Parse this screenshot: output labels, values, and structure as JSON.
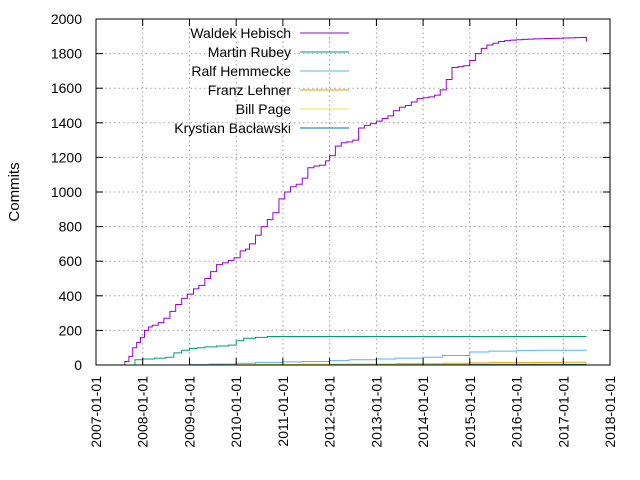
{
  "chart_data": {
    "type": "line",
    "title": "",
    "xlabel": "",
    "ylabel": "Commits",
    "ylim": [
      0,
      2000
    ],
    "xlim": [
      "2007-01-01",
      "2018-01-01"
    ],
    "yticks": [
      "0",
      "200",
      "400",
      "600",
      "800",
      "1000",
      "1200",
      "1400",
      "1600",
      "1800",
      "2000"
    ],
    "xticks": [
      "2007-01-01",
      "2008-01-01",
      "2009-01-01",
      "2010-01-01",
      "2011-01-01",
      "2012-01-01",
      "2013-01-01",
      "2014-01-01",
      "2015-01-01",
      "2016-01-01",
      "2017-01-01",
      "2018-01-01"
    ],
    "grid": true,
    "legend_position": "top-left",
    "series": [
      {
        "name": "Waldek Hebisch",
        "color": "#9400d3",
        "x": [
          "2007-07-15",
          "2007-08-15",
          "2007-09-15",
          "2007-10-15",
          "2007-11-15",
          "2007-12-15",
          "2008-01-15",
          "2008-02-15",
          "2008-03-15",
          "2008-05-01",
          "2008-06-15",
          "2008-08-01",
          "2008-09-15",
          "2008-11-01",
          "2008-12-15",
          "2009-02-01",
          "2009-03-15",
          "2009-05-01",
          "2009-06-15",
          "2009-08-01",
          "2009-09-15",
          "2009-11-01",
          "2009-12-15",
          "2010-02-01",
          "2010-03-15",
          "2010-04-15",
          "2010-06-01",
          "2010-07-15",
          "2010-09-01",
          "2010-10-15",
          "2010-12-01",
          "2011-01-15",
          "2011-03-01",
          "2011-04-15",
          "2011-06-01",
          "2011-07-15",
          "2011-09-01",
          "2011-10-15",
          "2011-12-01",
          "2012-01-01",
          "2012-02-15",
          "2012-04-01",
          "2012-05-15",
          "2012-07-01",
          "2012-08-15",
          "2012-10-01",
          "2012-11-15",
          "2013-01-01",
          "2013-02-15",
          "2013-04-01",
          "2013-05-15",
          "2013-07-01",
          "2013-08-15",
          "2013-10-01",
          "2013-11-15",
          "2014-01-01",
          "2014-02-15",
          "2014-04-01",
          "2014-05-15",
          "2014-07-01",
          "2014-08-15",
          "2014-10-01",
          "2014-11-15",
          "2015-01-01",
          "2015-02-15",
          "2015-04-01",
          "2015-05-15",
          "2015-07-01",
          "2015-08-15",
          "2015-10-01",
          "2015-11-15",
          "2016-01-01",
          "2016-02-15",
          "2016-04-01",
          "2016-05-15",
          "2016-07-01",
          "2016-08-15",
          "2016-10-01",
          "2016-11-15",
          "2017-01-01",
          "2017-02-15",
          "2017-04-01",
          "2017-05-15",
          "2017-07-01"
        ],
        "values": [
          0,
          20,
          50,
          100,
          130,
          160,
          200,
          220,
          230,
          245,
          270,
          310,
          350,
          385,
          410,
          440,
          460,
          500,
          540,
          580,
          590,
          605,
          620,
          660,
          670,
          700,
          750,
          800,
          840,
          880,
          960,
          1000,
          1030,
          1045,
          1080,
          1140,
          1150,
          1155,
          1180,
          1210,
          1265,
          1285,
          1290,
          1300,
          1370,
          1385,
          1395,
          1410,
          1425,
          1440,
          1470,
          1490,
          1500,
          1520,
          1540,
          1545,
          1550,
          1560,
          1590,
          1650,
          1720,
          1725,
          1730,
          1760,
          1800,
          1830,
          1850,
          1860,
          1870,
          1875,
          1878,
          1880,
          1882,
          1884,
          1885,
          1886,
          1887,
          1888,
          1889,
          1890,
          1891,
          1892,
          1893,
          1870
        ]
      },
      {
        "name": "Martin Rubey",
        "color": "#009e73",
        "x": [
          "2007-09-15",
          "2007-11-01",
          "2008-01-01",
          "2008-04-01",
          "2008-07-01",
          "2008-09-01",
          "2008-11-01",
          "2009-01-01",
          "2009-03-01",
          "2009-05-01",
          "2009-08-01",
          "2009-11-01",
          "2010-01-01",
          "2010-03-01",
          "2010-06-01",
          "2010-09-01",
          "2011-01-01",
          "2012-01-01",
          "2013-01-01",
          "2014-01-01",
          "2015-01-01",
          "2016-01-01",
          "2017-01-01",
          "2017-07-01"
        ],
        "values": [
          0,
          30,
          35,
          40,
          45,
          70,
          85,
          95,
          100,
          105,
          110,
          115,
          140,
          155,
          160,
          165,
          165,
          165,
          165,
          165,
          165,
          165,
          165,
          165
        ]
      },
      {
        "name": "Ralf Hemmecke",
        "color": "#56b4e9",
        "x": [
          "2008-08-01",
          "2009-01-01",
          "2009-06-01",
          "2010-01-01",
          "2010-06-01",
          "2011-01-01",
          "2011-06-01",
          "2012-01-01",
          "2012-06-01",
          "2013-01-01",
          "2013-06-01",
          "2014-01-01",
          "2014-06-01",
          "2015-01-01",
          "2015-06-01",
          "2016-01-01",
          "2016-06-01",
          "2017-01-01",
          "2017-07-01"
        ],
        "values": [
          0,
          3,
          6,
          10,
          15,
          18,
          20,
          25,
          30,
          35,
          40,
          45,
          55,
          75,
          80,
          83,
          85,
          85,
          88
        ]
      },
      {
        "name": "Franz Lehner",
        "color": "#e69f00",
        "x": [
          "2009-06-01",
          "2010-06-01",
          "2011-06-01",
          "2012-06-01",
          "2013-06-01",
          "2014-06-01",
          "2015-01-01",
          "2015-06-01",
          "2016-06-01",
          "2017-01-01",
          "2017-07-01"
        ],
        "values": [
          0,
          2,
          4,
          6,
          8,
          10,
          12,
          14,
          15,
          16,
          16
        ]
      },
      {
        "name": "Bill Page",
        "color": "#f0e442",
        "x": [
          "2008-01-01",
          "2009-01-01",
          "2010-01-01",
          "2011-01-01",
          "2012-01-01",
          "2013-01-01",
          "2014-01-01",
          "2015-01-01",
          "2016-01-01",
          "2017-01-01",
          "2017-07-01"
        ],
        "values": [
          0,
          1,
          2,
          3,
          4,
          4,
          5,
          5,
          6,
          6,
          6
        ]
      },
      {
        "name": "Krystian Bacławski",
        "color": "#0072b2",
        "x": [
          "2008-01-01",
          "2010-01-01",
          "2012-01-01",
          "2014-01-01",
          "2015-01-01",
          "2016-01-01",
          "2017-01-01",
          "2017-07-01"
        ],
        "values": [
          0,
          0,
          1,
          1,
          2,
          2,
          3,
          3
        ]
      }
    ]
  }
}
